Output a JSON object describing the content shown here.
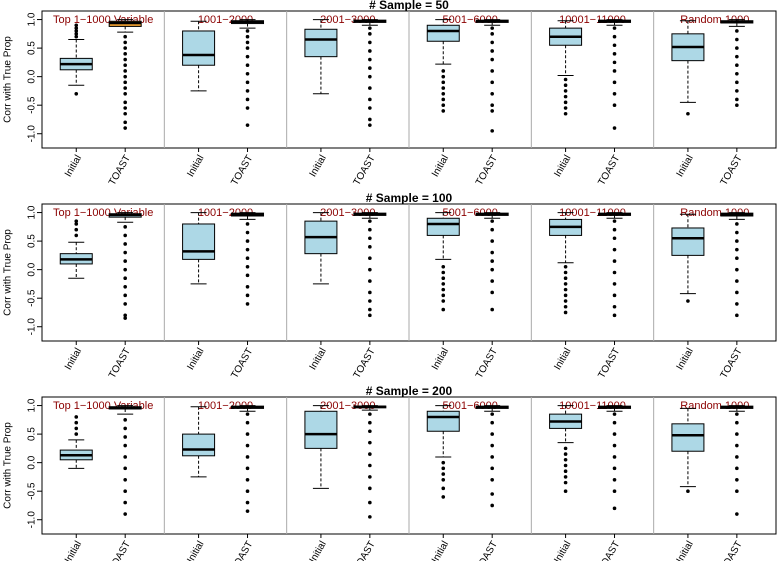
{
  "chart_data": [
    {
      "type": "box",
      "title": "# Sample = 50",
      "ylabel": "Corr with True Prop",
      "ylim": [
        -1.25,
        1.15
      ],
      "yticks": [
        {
          "value": 1,
          "label": "1.0"
        },
        {
          "value": 0.5,
          "label": "0.5"
        },
        {
          "value": 0,
          "label": "0.0"
        },
        {
          "value": -0.5,
          "label": "-0.5"
        },
        {
          "value": -1,
          "label": "-1.0"
        }
      ],
      "groups": [
        {
          "name": "Top 1−1000 Variable",
          "boxes": [
            {
              "label": "Initial",
              "color": "#add8e6",
              "whisker_low": -0.15,
              "q1": 0.12,
              "median": 0.22,
              "q3": 0.32,
              "whisker_high": 0.65,
              "outliers": [
                0.7,
                0.75,
                0.8,
                0.85,
                0.9,
                -0.3
              ]
            },
            {
              "label": "TOAST",
              "color": "#f0a030",
              "whisker_low": 0.78,
              "q1": 0.88,
              "median": 0.94,
              "q3": 0.97,
              "whisker_high": 1.0,
              "outliers": [
                0.7,
                0.6,
                0.5,
                0.4,
                0.3,
                0.2,
                0.1,
                0.0,
                -0.1,
                -0.2,
                -0.3,
                -0.45,
                -0.55,
                -0.65,
                -0.8,
                -0.9
              ]
            }
          ]
        },
        {
          "name": "1001−2000",
          "boxes": [
            {
              "label": "Initial",
              "color": "#add8e6",
              "whisker_low": -0.25,
              "q1": 0.2,
              "median": 0.38,
              "q3": 0.8,
              "whisker_high": 0.97,
              "outliers": []
            },
            {
              "label": "TOAST",
              "color": "#add8e6",
              "whisker_low": 0.85,
              "q1": 0.93,
              "median": 0.96,
              "q3": 0.98,
              "whisker_high": 1.0,
              "outliers": [
                0.8,
                0.7,
                0.6,
                0.5,
                0.35,
                0.2,
                0.05,
                -0.1,
                -0.25,
                -0.4,
                -0.55,
                -0.85
              ]
            }
          ]
        },
        {
          "name": "2001−3000",
          "boxes": [
            {
              "label": "Initial",
              "color": "#add8e6",
              "whisker_low": -0.3,
              "q1": 0.35,
              "median": 0.65,
              "q3": 0.83,
              "whisker_high": 1.0,
              "outliers": []
            },
            {
              "label": "TOAST",
              "color": "#add8e6",
              "whisker_low": 0.9,
              "q1": 0.95,
              "median": 0.97,
              "q3": 0.99,
              "whisker_high": 1.0,
              "outliers": [
                0.85,
                0.75,
                0.6,
                0.45,
                0.3,
                0.15,
                0.0,
                -0.2,
                -0.4,
                -0.55,
                -0.75,
                -0.85
              ]
            }
          ]
        },
        {
          "name": "5001−6000",
          "boxes": [
            {
              "label": "Initial",
              "color": "#add8e6",
              "whisker_low": 0.22,
              "q1": 0.62,
              "median": 0.8,
              "q3": 0.9,
              "whisker_high": 1.0,
              "outliers": [
                0.1,
                0.0,
                -0.1,
                -0.2,
                -0.3,
                -0.4,
                -0.5,
                -0.6
              ]
            },
            {
              "label": "TOAST",
              "color": "#add8e6",
              "whisker_low": 0.9,
              "q1": 0.95,
              "median": 0.97,
              "q3": 0.99,
              "whisker_high": 1.0,
              "outliers": [
                0.85,
                0.75,
                0.6,
                0.45,
                0.3,
                0.1,
                -0.1,
                -0.3,
                -0.5,
                -0.6,
                -0.95
              ]
            }
          ]
        },
        {
          "name": "10001−11000",
          "boxes": [
            {
              "label": "Initial",
              "color": "#add8e6",
              "whisker_low": 0.02,
              "q1": 0.55,
              "median": 0.7,
              "q3": 0.85,
              "whisker_high": 0.98,
              "outliers": [
                -0.05,
                -0.15,
                -0.25,
                -0.35,
                -0.45,
                -0.55,
                -0.65
              ]
            },
            {
              "label": "TOAST",
              "color": "#add8e6",
              "whisker_low": 0.9,
              "q1": 0.95,
              "median": 0.97,
              "q3": 0.99,
              "whisker_high": 1.0,
              "outliers": [
                0.85,
                0.7,
                0.55,
                0.4,
                0.25,
                0.1,
                -0.1,
                -0.3,
                -0.5,
                -0.9
              ]
            }
          ]
        },
        {
          "name": "Random 1000",
          "boxes": [
            {
              "label": "Initial",
              "color": "#add8e6",
              "whisker_low": -0.45,
              "q1": 0.28,
              "median": 0.52,
              "q3": 0.75,
              "whisker_high": 0.98,
              "outliers": [
                -0.65
              ]
            },
            {
              "label": "TOAST",
              "color": "#add8e6",
              "whisker_low": 0.88,
              "q1": 0.94,
              "median": 0.96,
              "q3": 0.98,
              "whisker_high": 1.0,
              "outliers": [
                0.8,
                0.65,
                0.5,
                0.35,
                0.2,
                0.05,
                -0.1,
                -0.25,
                -0.4,
                -0.5
              ]
            }
          ]
        }
      ]
    },
    {
      "type": "box",
      "title": "# Sample = 100",
      "ylabel": "Corr with True Prop",
      "ylim": [
        -1.25,
        1.15
      ],
      "yticks": [
        {
          "value": 1,
          "label": "1.0"
        },
        {
          "value": 0.5,
          "label": "0.5"
        },
        {
          "value": 0,
          "label": "0.0"
        },
        {
          "value": -0.5,
          "label": "-0.5"
        },
        {
          "value": -1,
          "label": "-1.0"
        }
      ],
      "groups": [
        {
          "name": "Top 1−1000 Variable",
          "boxes": [
            {
              "label": "Initial",
              "color": "#add8e6",
              "whisker_low": -0.15,
              "q1": 0.1,
              "median": 0.18,
              "q3": 0.28,
              "whisker_high": 0.48,
              "outliers": [
                0.6,
                0.7,
                0.8,
                0.85
              ]
            },
            {
              "label": "TOAST",
              "color": "#add8e6",
              "whisker_low": 0.83,
              "q1": 0.92,
              "median": 0.96,
              "q3": 0.98,
              "whisker_high": 1.0,
              "outliers": [
                0.75,
                0.6,
                0.45,
                0.3,
                0.15,
                0.0,
                -0.15,
                -0.3,
                -0.45,
                -0.6,
                -0.8,
                -0.85
              ]
            }
          ]
        },
        {
          "name": "1001−2000",
          "boxes": [
            {
              "label": "Initial",
              "color": "#add8e6",
              "whisker_low": -0.25,
              "q1": 0.18,
              "median": 0.32,
              "q3": 0.8,
              "whisker_high": 1.0,
              "outliers": []
            },
            {
              "label": "TOAST",
              "color": "#add8e6",
              "whisker_low": 0.88,
              "q1": 0.94,
              "median": 0.97,
              "q3": 0.99,
              "whisker_high": 1.0,
              "outliers": [
                0.8,
                0.65,
                0.5,
                0.35,
                0.2,
                0.05,
                -0.1,
                -0.3,
                -0.45,
                -0.6
              ]
            }
          ]
        },
        {
          "name": "2001−3000",
          "boxes": [
            {
              "label": "Initial",
              "color": "#add8e6",
              "whisker_low": -0.25,
              "q1": 0.28,
              "median": 0.57,
              "q3": 0.85,
              "whisker_high": 1.0,
              "outliers": []
            },
            {
              "label": "TOAST",
              "color": "#add8e6",
              "whisker_low": 0.9,
              "q1": 0.95,
              "median": 0.97,
              "q3": 0.99,
              "whisker_high": 1.0,
              "outliers": [
                0.85,
                0.7,
                0.55,
                0.4,
                0.2,
                0.0,
                -0.2,
                -0.4,
                -0.55,
                -0.7,
                -0.8
              ]
            }
          ]
        },
        {
          "name": "5001−6000",
          "boxes": [
            {
              "label": "Initial",
              "color": "#add8e6",
              "whisker_low": 0.18,
              "q1": 0.6,
              "median": 0.8,
              "q3": 0.9,
              "whisker_high": 1.0,
              "outliers": [
                0.05,
                -0.05,
                -0.15,
                -0.25,
                -0.35,
                -0.45,
                -0.55,
                -0.7
              ]
            },
            {
              "label": "TOAST",
              "color": "#add8e6",
              "whisker_low": 0.9,
              "q1": 0.95,
              "median": 0.97,
              "q3": 0.99,
              "whisker_high": 1.0,
              "outliers": [
                0.85,
                0.7,
                0.5,
                0.3,
                0.15,
                0.0,
                -0.2,
                -0.4,
                -0.7
              ]
            }
          ]
        },
        {
          "name": "10001−11000",
          "boxes": [
            {
              "label": "Initial",
              "color": "#add8e6",
              "whisker_low": 0.12,
              "q1": 0.6,
              "median": 0.75,
              "q3": 0.88,
              "whisker_high": 1.0,
              "outliers": [
                0.05,
                -0.05,
                -0.15,
                -0.25,
                -0.35,
                -0.45,
                -0.55,
                -0.65,
                -0.75
              ]
            },
            {
              "label": "TOAST",
              "color": "#add8e6",
              "whisker_low": 0.9,
              "q1": 0.95,
              "median": 0.97,
              "q3": 0.99,
              "whisker_high": 1.0,
              "outliers": [
                0.85,
                0.7,
                0.55,
                0.35,
                0.15,
                -0.05,
                -0.25,
                -0.45,
                -0.65,
                -0.8
              ]
            }
          ]
        },
        {
          "name": "Random 1000",
          "boxes": [
            {
              "label": "Initial",
              "color": "#add8e6",
              "whisker_low": -0.42,
              "q1": 0.25,
              "median": 0.55,
              "q3": 0.73,
              "whisker_high": 0.97,
              "outliers": [
                -0.55
              ]
            },
            {
              "label": "TOAST",
              "color": "#add8e6",
              "whisker_low": 0.88,
              "q1": 0.94,
              "median": 0.97,
              "q3": 0.99,
              "whisker_high": 1.0,
              "outliers": [
                0.8,
                0.65,
                0.5,
                0.35,
                0.2,
                0.0,
                -0.2,
                -0.4,
                -0.6,
                -0.8
              ]
            }
          ]
        }
      ]
    },
    {
      "type": "box",
      "title": "# Sample = 200",
      "ylabel": "Corr with True Prop",
      "ylim": [
        -1.25,
        1.15
      ],
      "yticks": [
        {
          "value": 1,
          "label": "1.0"
        },
        {
          "value": 0.5,
          "label": "0.5"
        },
        {
          "value": 0,
          "label": "0.0"
        },
        {
          "value": -0.5,
          "label": "-0.5"
        },
        {
          "value": -1,
          "label": "-1.0"
        }
      ],
      "groups": [
        {
          "name": "Top 1−1000 Variable",
          "boxes": [
            {
              "label": "Initial",
              "color": "#add8e6",
              "whisker_low": -0.1,
              "q1": 0.05,
              "median": 0.13,
              "q3": 0.22,
              "whisker_high": 0.4,
              "outliers": [
                0.5,
                0.6,
                0.7,
                0.8
              ]
            },
            {
              "label": "TOAST",
              "color": "#add8e6",
              "whisker_low": 0.85,
              "q1": 0.94,
              "median": 0.96,
              "q3": 0.98,
              "whisker_high": 1.0,
              "outliers": [
                0.75,
                0.6,
                0.45,
                0.3,
                0.1,
                -0.1,
                -0.3,
                -0.5,
                -0.7,
                -0.9
              ]
            }
          ]
        },
        {
          "name": "1001−2000",
          "boxes": [
            {
              "label": "Initial",
              "color": "#add8e6",
              "whisker_low": -0.25,
              "q1": 0.12,
              "median": 0.23,
              "q3": 0.5,
              "whisker_high": 0.98,
              "outliers": []
            },
            {
              "label": "TOAST",
              "color": "#add8e6",
              "whisker_low": 0.9,
              "q1": 0.95,
              "median": 0.97,
              "q3": 0.99,
              "whisker_high": 1.0,
              "outliers": [
                0.85,
                0.7,
                0.5,
                0.3,
                0.1,
                -0.1,
                -0.3,
                -0.5,
                -0.7,
                -0.85
              ]
            }
          ]
        },
        {
          "name": "2001−3000",
          "boxes": [
            {
              "label": "Initial",
              "color": "#add8e6",
              "whisker_low": -0.45,
              "q1": 0.25,
              "median": 0.5,
              "q3": 0.9,
              "whisker_high": 1.0,
              "outliers": []
            },
            {
              "label": "TOAST",
              "color": "#add8e6",
              "whisker_low": 0.92,
              "q1": 0.96,
              "median": 0.98,
              "q3": 0.99,
              "whisker_high": 1.0,
              "outliers": [
                0.85,
                0.7,
                0.55,
                0.35,
                0.15,
                -0.05,
                -0.25,
                -0.45,
                -0.7,
                -0.95
              ]
            }
          ]
        },
        {
          "name": "5001−6000",
          "boxes": [
            {
              "label": "Initial",
              "color": "#add8e6",
              "whisker_low": 0.1,
              "q1": 0.55,
              "median": 0.8,
              "q3": 0.9,
              "whisker_high": 1.0,
              "outliers": [
                0.0,
                -0.1,
                -0.2,
                -0.3,
                -0.45,
                -0.6
              ]
            },
            {
              "label": "TOAST",
              "color": "#add8e6",
              "whisker_low": 0.9,
              "q1": 0.95,
              "median": 0.97,
              "q3": 0.99,
              "whisker_high": 1.0,
              "outliers": [
                0.85,
                0.7,
                0.5,
                0.3,
                0.1,
                -0.1,
                -0.3,
                -0.55,
                -0.75
              ]
            }
          ]
        },
        {
          "name": "10001−11000",
          "boxes": [
            {
              "label": "Initial",
              "color": "#add8e6",
              "whisker_low": 0.35,
              "q1": 0.6,
              "median": 0.72,
              "q3": 0.85,
              "whisker_high": 1.0,
              "outliers": [
                0.25,
                0.15,
                0.05,
                -0.05,
                -0.15,
                -0.25,
                -0.35,
                -0.5
              ]
            },
            {
              "label": "TOAST",
              "color": "#add8e6",
              "whisker_low": 0.9,
              "q1": 0.95,
              "median": 0.97,
              "q3": 0.99,
              "whisker_high": 1.0,
              "outliers": [
                0.85,
                0.7,
                0.5,
                0.3,
                0.1,
                -0.1,
                -0.3,
                -0.5,
                -0.8
              ]
            }
          ]
        },
        {
          "name": "Random 1000",
          "boxes": [
            {
              "label": "Initial",
              "color": "#add8e6",
              "whisker_low": -0.42,
              "q1": 0.2,
              "median": 0.48,
              "q3": 0.68,
              "whisker_high": 0.95,
              "outliers": [
                -0.5
              ]
            },
            {
              "label": "TOAST",
              "color": "#add8e6",
              "whisker_low": 0.9,
              "q1": 0.95,
              "median": 0.97,
              "q3": 0.99,
              "whisker_high": 1.0,
              "outliers": [
                0.85,
                0.7,
                0.5,
                0.3,
                0.1,
                -0.1,
                -0.3,
                -0.5,
                -0.9
              ]
            }
          ]
        }
      ]
    }
  ]
}
